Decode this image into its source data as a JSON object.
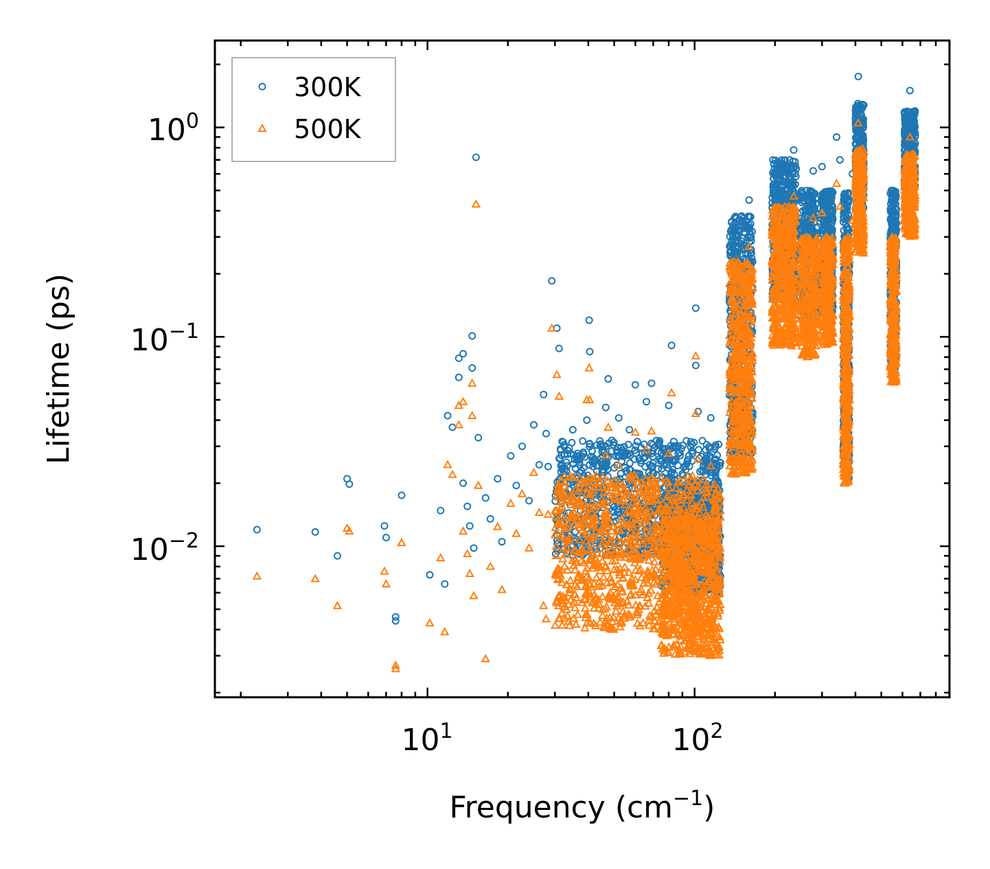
{
  "chart_data": {
    "type": "scatter",
    "title": "",
    "xlabel": "Frequency (cm",
    "xlabel_sup": "−1",
    "xlabel_end": ")",
    "ylabel": "Lifetime (ps)",
    "xscale": "log",
    "yscale": "log",
    "xlim": [
      1.6,
      900
    ],
    "ylim": [
      0.0019,
      2.6
    ],
    "x_tick_labels": [
      {
        "base": "10",
        "exp": "1",
        "value": 10
      },
      {
        "base": "10",
        "exp": "2",
        "value": 100
      }
    ],
    "y_tick_labels": [
      {
        "base": "10",
        "exp": "0",
        "value": 1
      },
      {
        "base": "10",
        "exp": "−1",
        "value": 0.1
      },
      {
        "base": "10",
        "exp": "−2",
        "value": 0.01
      }
    ],
    "legend_position": "top-left",
    "series": [
      {
        "name": "300K",
        "marker": "circle",
        "color": "#1f77b4",
        "points": [
          [
            2.3,
            0.012
          ],
          [
            3.8,
            0.0117
          ],
          [
            4.6,
            0.009
          ],
          [
            5.0,
            0.021
          ],
          [
            5.1,
            0.0198
          ],
          [
            6.9,
            0.0125
          ],
          [
            7.0,
            0.011
          ],
          [
            7.6,
            0.0044
          ],
          [
            7.6,
            0.0046
          ],
          [
            8.0,
            0.0175
          ],
          [
            10.2,
            0.0073
          ],
          [
            11.2,
            0.0148
          ],
          [
            11.6,
            0.0066
          ],
          [
            11.9,
            0.042
          ],
          [
            12.4,
            0.037
          ],
          [
            13.1,
            0.064
          ],
          [
            13.1,
            0.079
          ],
          [
            13.6,
            0.083
          ],
          [
            13.6,
            0.02
          ],
          [
            14.1,
            0.0155
          ],
          [
            14.7,
            0.101
          ],
          [
            14.7,
            0.071
          ],
          [
            15.2,
            0.72
          ],
          [
            15.5,
            0.033
          ],
          [
            14.4,
            0.0125
          ],
          [
            14.9,
            0.0098
          ],
          [
            16.5,
            0.017
          ],
          [
            17.2,
            0.0135
          ],
          [
            18.3,
            0.021
          ],
          [
            19.0,
            0.0105
          ],
          [
            20.5,
            0.027
          ],
          [
            21.5,
            0.0195
          ],
          [
            22.6,
            0.03
          ],
          [
            24.0,
            0.0165
          ],
          [
            25.0,
            0.038
          ],
          [
            26.2,
            0.0245
          ],
          [
            27.2,
            0.053
          ],
          [
            27.8,
            0.0345
          ],
          [
            28.3,
            0.024
          ],
          [
            29.2,
            0.185
          ],
          [
            30.5,
            0.11
          ],
          [
            31.1,
            0.088
          ],
          [
            32.5,
            0.0305
          ],
          [
            33.0,
            0.018
          ],
          [
            35.0,
            0.036
          ],
          [
            36.5,
            0.027
          ],
          [
            38.0,
            0.016
          ],
          [
            39.5,
            0.04
          ],
          [
            40.3,
            0.12
          ],
          [
            40.5,
            0.085
          ],
          [
            42.0,
            0.026
          ],
          [
            44.0,
            0.019
          ],
          [
            46.5,
            0.046
          ],
          [
            47.5,
            0.063
          ],
          [
            49.0,
            0.032
          ],
          [
            52.0,
            0.041
          ],
          [
            54.0,
            0.028
          ],
          [
            57.0,
            0.036
          ],
          [
            60.0,
            0.059
          ],
          [
            63.0,
            0.025
          ],
          [
            66.0,
            0.049
          ],
          [
            69.0,
            0.06
          ],
          [
            72.0,
            0.032
          ],
          [
            76.0,
            0.027
          ],
          [
            80.0,
            0.047
          ],
          [
            82.0,
            0.091
          ],
          [
            84.0,
            0.022
          ],
          [
            88.0,
            0.028
          ],
          [
            92.0,
            0.018
          ],
          [
            96.0,
            0.013
          ],
          [
            101.0,
            0.137
          ],
          [
            101.0,
            0.073
          ],
          [
            103.0,
            0.044
          ],
          [
            105.0,
            0.016
          ],
          [
            110.0,
            0.022
          ],
          [
            115.0,
            0.041
          ],
          [
            120.0,
            0.026
          ],
          [
            125.0,
            0.025
          ],
          [
            140.0,
            0.06
          ],
          [
            145.0,
            0.11
          ],
          [
            150.0,
            0.2
          ],
          [
            155.0,
            0.33
          ],
          [
            160.0,
            0.45
          ],
          [
            158.0,
            0.3
          ],
          [
            162.0,
            0.16
          ],
          [
            205.0,
            0.33
          ],
          [
            215.0,
            0.55
          ],
          [
            225.0,
            0.48
          ],
          [
            235.0,
            0.78
          ],
          [
            240.0,
            0.45
          ],
          [
            250.0,
            0.35
          ],
          [
            260.0,
            0.31
          ],
          [
            272.0,
            0.37
          ],
          [
            278.0,
            0.62
          ],
          [
            300.0,
            0.65
          ],
          [
            310.0,
            0.45
          ],
          [
            320.0,
            0.3
          ],
          [
            340.0,
            0.9
          ],
          [
            350.0,
            0.7
          ],
          [
            365.0,
            0.45
          ],
          [
            370.0,
            0.25
          ],
          [
            390.0,
            0.6
          ],
          [
            410.0,
            1.75
          ],
          [
            415.0,
            1.2
          ],
          [
            420.0,
            0.9
          ],
          [
            425.0,
            0.6
          ],
          [
            550.0,
            0.5
          ],
          [
            555.0,
            0.35
          ],
          [
            560.0,
            0.25
          ],
          [
            640.0,
            1.5
          ],
          [
            645.0,
            1.1
          ],
          [
            650.0,
            0.8
          ],
          [
            655.0,
            0.6
          ]
        ]
      },
      {
        "name": "500K",
        "marker": "triangle",
        "color": "#ff7f0e",
        "points": [
          [
            2.3,
            0.0072
          ],
          [
            3.8,
            0.007
          ],
          [
            4.6,
            0.0052
          ],
          [
            5.0,
            0.0122
          ],
          [
            5.1,
            0.0118
          ],
          [
            6.9,
            0.0076
          ],
          [
            7.0,
            0.0066
          ],
          [
            7.6,
            0.0026
          ],
          [
            7.6,
            0.0027
          ],
          [
            8.0,
            0.0104
          ],
          [
            10.2,
            0.0043
          ],
          [
            11.2,
            0.0088
          ],
          [
            11.6,
            0.0039
          ],
          [
            11.9,
            0.0245
          ],
          [
            12.4,
            0.022
          ],
          [
            13.1,
            0.038
          ],
          [
            13.1,
            0.047
          ],
          [
            13.6,
            0.049
          ],
          [
            13.6,
            0.0118
          ],
          [
            14.1,
            0.0092
          ],
          [
            14.7,
            0.06
          ],
          [
            14.7,
            0.042
          ],
          [
            15.2,
            0.43
          ],
          [
            15.5,
            0.0195
          ],
          [
            14.4,
            0.0074
          ],
          [
            14.9,
            0.0058
          ],
          [
            16.5,
            0.0029
          ],
          [
            17.2,
            0.008
          ],
          [
            18.3,
            0.0124
          ],
          [
            19.0,
            0.0062
          ],
          [
            20.5,
            0.016
          ],
          [
            21.5,
            0.0115
          ],
          [
            22.6,
            0.0178
          ],
          [
            24.0,
            0.0098
          ],
          [
            25.0,
            0.0225
          ],
          [
            26.2,
            0.0145
          ],
          [
            27.2,
            0.0052
          ],
          [
            27.8,
            0.0045
          ],
          [
            28.3,
            0.0142
          ],
          [
            29.2,
            0.11
          ],
          [
            30.5,
            0.066
          ],
          [
            31.1,
            0.052
          ],
          [
            32.5,
            0.018
          ],
          [
            33.0,
            0.0107
          ],
          [
            35.0,
            0.0213
          ],
          [
            36.5,
            0.016
          ],
          [
            38.0,
            0.0095
          ],
          [
            39.5,
            0.05
          ],
          [
            40.3,
            0.071
          ],
          [
            40.5,
            0.05
          ],
          [
            42.0,
            0.0154
          ],
          [
            44.0,
            0.0112
          ],
          [
            46.5,
            0.0272
          ],
          [
            47.5,
            0.037
          ],
          [
            49.0,
            0.019
          ],
          [
            52.0,
            0.0243
          ],
          [
            54.0,
            0.0166
          ],
          [
            57.0,
            0.0213
          ],
          [
            60.0,
            0.035
          ],
          [
            63.0,
            0.0148
          ],
          [
            66.0,
            0.029
          ],
          [
            69.0,
            0.0355
          ],
          [
            72.0,
            0.019
          ],
          [
            76.0,
            0.016
          ],
          [
            80.0,
            0.0278
          ],
          [
            82.0,
            0.054
          ],
          [
            84.0,
            0.013
          ],
          [
            88.0,
            0.0166
          ],
          [
            92.0,
            0.0106
          ],
          [
            96.0,
            0.0077
          ],
          [
            101.0,
            0.081
          ],
          [
            101.0,
            0.043
          ],
          [
            103.0,
            0.026
          ],
          [
            105.0,
            0.0095
          ],
          [
            110.0,
            0.013
          ],
          [
            115.0,
            0.0242
          ],
          [
            120.0,
            0.0154
          ],
          [
            125.0,
            0.0148
          ],
          [
            140.0,
            0.035
          ],
          [
            145.0,
            0.065
          ],
          [
            150.0,
            0.118
          ],
          [
            155.0,
            0.195
          ],
          [
            160.0,
            0.27
          ],
          [
            158.0,
            0.18
          ],
          [
            162.0,
            0.095
          ],
          [
            205.0,
            0.2
          ],
          [
            215.0,
            0.33
          ],
          [
            225.0,
            0.29
          ],
          [
            235.0,
            0.47
          ],
          [
            240.0,
            0.27
          ],
          [
            250.0,
            0.21
          ],
          [
            260.0,
            0.19
          ],
          [
            272.0,
            0.22
          ],
          [
            278.0,
            0.37
          ],
          [
            300.0,
            0.39
          ],
          [
            310.0,
            0.27
          ],
          [
            320.0,
            0.18
          ],
          [
            340.0,
            0.54
          ],
          [
            350.0,
            0.42
          ],
          [
            365.0,
            0.27
          ],
          [
            370.0,
            0.15
          ],
          [
            390.0,
            0.36
          ],
          [
            410.0,
            1.05
          ],
          [
            415.0,
            0.72
          ],
          [
            420.0,
            0.54
          ],
          [
            425.0,
            0.36
          ],
          [
            550.0,
            0.3
          ],
          [
            555.0,
            0.21
          ],
          [
            560.0,
            0.15
          ],
          [
            640.0,
            0.9
          ],
          [
            645.0,
            0.66
          ],
          [
            650.0,
            0.48
          ],
          [
            655.0,
            0.36
          ]
        ]
      }
    ],
    "density_bands": [
      {
        "x": [
          30,
          125
        ],
        "y300": [
          0.009,
          0.032
        ],
        "y500": [
          0.004,
          0.022
        ],
        "n": 900
      },
      {
        "x": [
          75,
          125
        ],
        "y300": [
          0.006,
          0.02
        ],
        "y500": [
          0.003,
          0.014
        ],
        "n": 600
      },
      {
        "x": [
          135,
          165
        ],
        "y300": [
          0.025,
          0.38
        ],
        "y500": [
          0.022,
          0.23
        ],
        "n": 500
      },
      {
        "x": [
          195,
          240
        ],
        "y300": [
          0.15,
          0.7
        ],
        "y500": [
          0.09,
          0.42
        ],
        "n": 500
      },
      {
        "x": [
          250,
          290
        ],
        "y300": [
          0.12,
          0.5
        ],
        "y500": [
          0.08,
          0.3
        ],
        "n": 300
      },
      {
        "x": [
          300,
          330
        ],
        "y300": [
          0.13,
          0.5
        ],
        "y500": [
          0.09,
          0.3
        ],
        "n": 300
      },
      {
        "x": [
          360,
          380
        ],
        "y300": [
          0.02,
          0.5
        ],
        "y500": [
          0.02,
          0.3
        ],
        "n": 400
      },
      {
        "x": [
          400,
          430
        ],
        "y300": [
          0.4,
          1.3
        ],
        "y500": [
          0.25,
          0.8
        ],
        "n": 300
      },
      {
        "x": [
          540,
          570
        ],
        "y300": [
          0.07,
          0.5
        ],
        "y500": [
          0.06,
          0.3
        ],
        "n": 300
      },
      {
        "x": [
          610,
          670
        ],
        "y300": [
          0.5,
          1.2
        ],
        "y500": [
          0.3,
          0.75
        ],
        "n": 300
      }
    ]
  }
}
